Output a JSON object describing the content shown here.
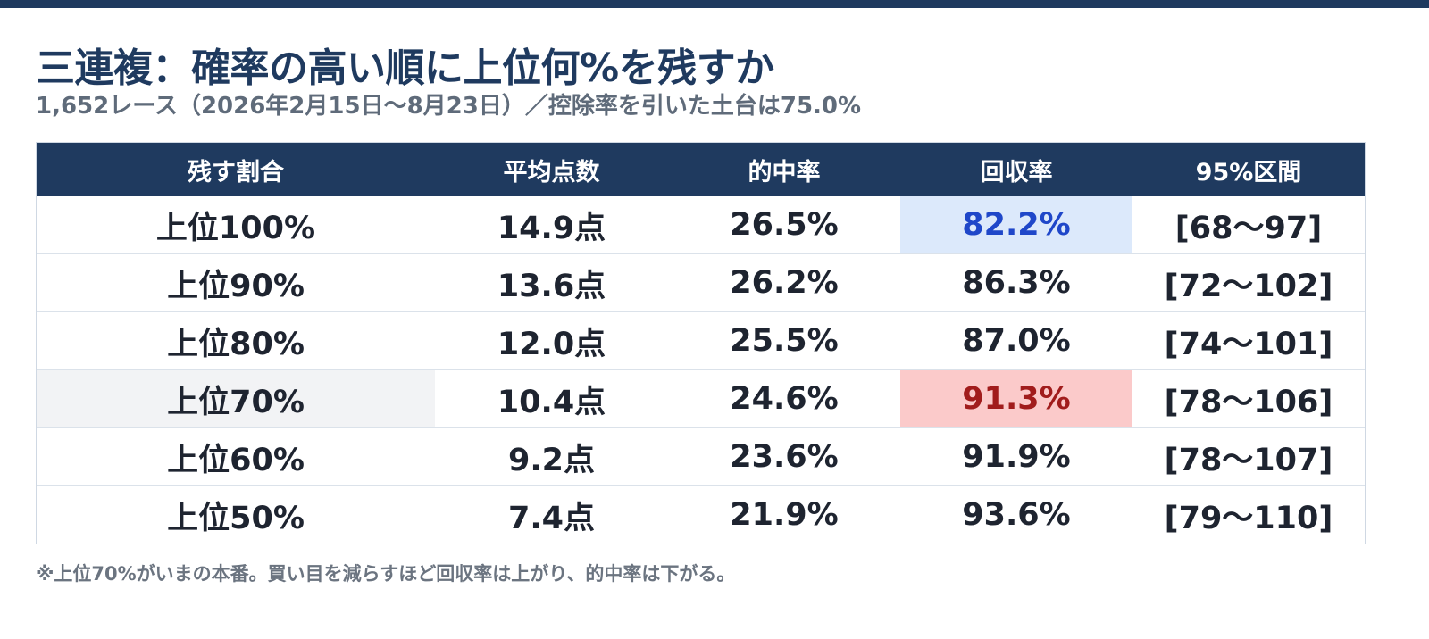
{
  "title": "三連複：確率の高い順に上位何%を残すか",
  "subtitle": "1,652レース（2026年2月15日〜8月23日）／控除率を引いた土台は75.0%",
  "table": {
    "headers": [
      "残す割合",
      "平均点数",
      "的中率",
      "回収率",
      "95%区間"
    ],
    "rows": [
      [
        "上位100%",
        "14.9点",
        "26.5%",
        "82.2%",
        "[68〜97]"
      ],
      [
        "上位90%",
        "13.6点",
        "26.2%",
        "86.3%",
        "[72〜102]"
      ],
      [
        "上位80%",
        "12.0点",
        "25.5%",
        "87.0%",
        "[74〜101]"
      ],
      [
        "上位70%",
        "10.4点",
        "24.6%",
        "91.3%",
        "[78〜106]"
      ],
      [
        "上位60%",
        "9.2点",
        "23.6%",
        "91.9%",
        "[78〜107]"
      ],
      [
        "上位50%",
        "7.4点",
        "21.9%",
        "93.6%",
        "[79〜110]"
      ]
    ]
  },
  "footnote": "※上位70%がいまの本番。買い目を減らすほど回収率は上がり、的中率は下がる。",
  "colors": {
    "header_bg": "#1f3a5f",
    "lowest_return_bg": "#dce9fb",
    "lowest_return_text": "#1f47c9",
    "current_setting_bg": "#fbcaca",
    "current_setting_text": "#a11c1c"
  }
}
